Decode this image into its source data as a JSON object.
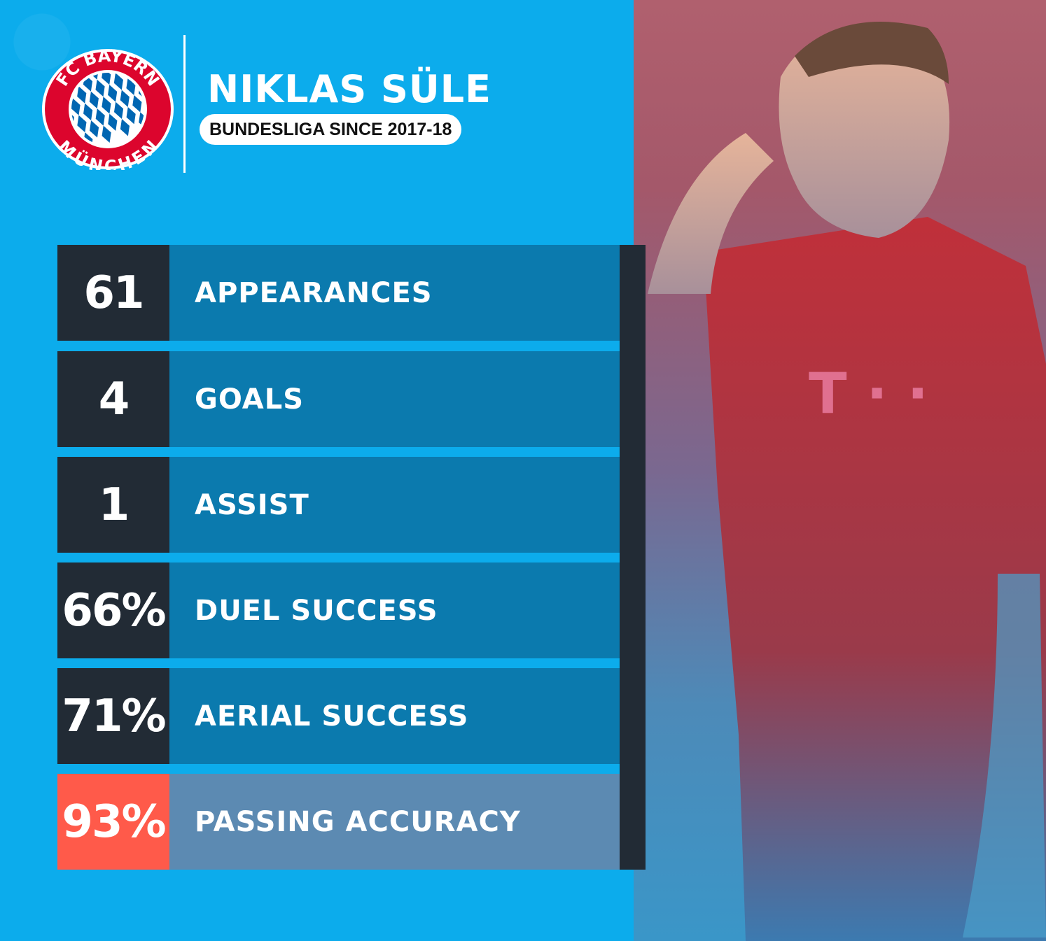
{
  "header": {
    "logo_text_top": "FC BAYERN",
    "logo_text_bottom": "MÜNCHEN",
    "player_name": "NIKLAS SÜLE",
    "subtitle": "BUNDESLIGA SINCE 2017-18"
  },
  "stats": [
    {
      "value": "61",
      "label": "APPEARANCES"
    },
    {
      "value": "4",
      "label": "GOALS"
    },
    {
      "value": "1",
      "label": "ASSIST"
    },
    {
      "value": "66%",
      "label": "DUEL SUCCESS"
    },
    {
      "value": "71%",
      "label": "AERIAL SUCCESS"
    },
    {
      "value": "93%",
      "label": "PASSING ACCURACY",
      "highlight": true
    }
  ],
  "colors": {
    "background": "#0cacec",
    "value_cell": "#222b35",
    "label_cell": "#0b7aae",
    "highlight_value": "#ff5a4a",
    "highlight_label": "#5c8ab2",
    "club_red": "#dc052d",
    "club_blue": "#0066b2"
  },
  "photo": {
    "icon": "player-photo"
  }
}
